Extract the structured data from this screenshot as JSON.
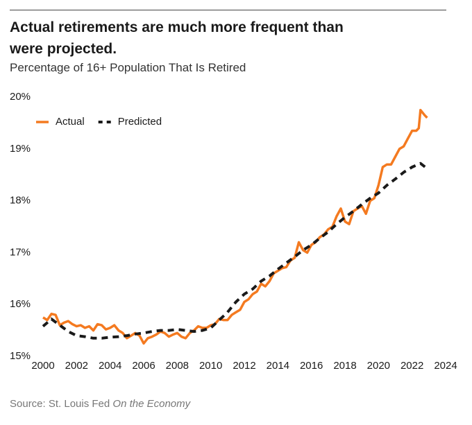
{
  "chart_data": {
    "type": "line",
    "title": "Actual retirements are much more frequent than were projected.",
    "subtitle": "Percentage of 16+ Population That Is Retired",
    "source": "Source: St. Louis Fed",
    "source_publication": "On the Economy",
    "legend": "upper left",
    "grid": false,
    "xlim": [
      2000,
      2024
    ],
    "xticks": [
      2000,
      2002,
      2004,
      2006,
      2008,
      2010,
      2012,
      2014,
      2016,
      2018,
      2020,
      2022,
      2024
    ],
    "ylim": [
      15,
      20
    ],
    "yticks": [
      {
        "value": 15,
        "label": "15%"
      },
      {
        "value": 16,
        "label": "16%"
      },
      {
        "value": 17,
        "label": "17%"
      },
      {
        "value": 18,
        "label": "18%"
      },
      {
        "value": 19,
        "label": "19%"
      },
      {
        "value": 20,
        "label": "20%"
      }
    ],
    "series": [
      {
        "name": "Actual",
        "color": "#f47a20",
        "dashed": false,
        "x": [
          2000,
          2000.25,
          2000.5,
          2000.75,
          2001,
          2001.25,
          2001.5,
          2001.75,
          2002,
          2002.25,
          2002.5,
          2002.75,
          2003,
          2003.25,
          2003.5,
          2003.75,
          2004,
          2004.25,
          2004.5,
          2004.75,
          2005,
          2005.25,
          2005.5,
          2005.75,
          2006,
          2006.25,
          2006.5,
          2006.75,
          2007,
          2007.25,
          2007.5,
          2007.75,
          2008,
          2008.25,
          2008.5,
          2008.75,
          2009,
          2009.25,
          2009.5,
          2009.75,
          2010,
          2010.25,
          2010.5,
          2010.75,
          2011,
          2011.25,
          2011.5,
          2011.75,
          2012,
          2012.25,
          2012.5,
          2012.75,
          2013,
          2013.25,
          2013.5,
          2013.75,
          2014,
          2014.25,
          2014.5,
          2014.75,
          2015,
          2015.25,
          2015.5,
          2015.75,
          2016,
          2016.25,
          2016.5,
          2016.75,
          2017,
          2017.25,
          2017.5,
          2017.75,
          2018,
          2018.25,
          2018.5,
          2018.75,
          2019,
          2019.25,
          2019.5,
          2019.75,
          2020,
          2020.25,
          2020.5,
          2020.75,
          2021,
          2021.25,
          2021.5,
          2021.75,
          2022,
          2022.25,
          2022.4,
          2022.5,
          2022.75,
          2022.9
        ],
        "values": [
          15.75,
          15.7,
          15.82,
          15.8,
          15.6,
          15.65,
          15.68,
          15.62,
          15.58,
          15.6,
          15.55,
          15.58,
          15.5,
          15.62,
          15.6,
          15.52,
          15.55,
          15.6,
          15.5,
          15.45,
          15.35,
          15.4,
          15.45,
          15.4,
          15.25,
          15.35,
          15.38,
          15.42,
          15.48,
          15.45,
          15.38,
          15.42,
          15.45,
          15.38,
          15.35,
          15.45,
          15.5,
          15.58,
          15.55,
          15.55,
          15.6,
          15.62,
          15.72,
          15.7,
          15.7,
          15.8,
          15.85,
          15.9,
          16.05,
          16.1,
          16.2,
          16.25,
          16.4,
          16.35,
          16.45,
          16.6,
          16.65,
          16.7,
          16.72,
          16.85,
          16.9,
          17.2,
          17.05,
          17.0,
          17.15,
          17.2,
          17.3,
          17.35,
          17.45,
          17.5,
          17.7,
          17.85,
          17.6,
          17.55,
          17.8,
          17.85,
          17.9,
          17.75,
          18.0,
          18.05,
          18.3,
          18.65,
          18.7,
          18.7,
          18.85,
          19.0,
          19.05,
          19.2,
          19.35,
          19.35,
          19.4,
          19.75,
          19.65,
          19.6
        ]
      },
      {
        "name": "Predicted",
        "color": "#1a1a1a",
        "dashed": true,
        "x": [
          2000,
          2000.5,
          2001,
          2001.5,
          2002,
          2002.5,
          2003,
          2003.5,
          2004,
          2004.5,
          2005,
          2005.5,
          2006,
          2006.5,
          2007,
          2007.5,
          2008,
          2008.5,
          2009,
          2009.5,
          2010,
          2010.5,
          2011,
          2011.5,
          2012,
          2012.5,
          2013,
          2013.5,
          2014,
          2014.5,
          2015,
          2015.5,
          2016,
          2016.5,
          2017,
          2017.5,
          2018,
          2018.5,
          2019,
          2019.5,
          2020,
          2020.5,
          2021,
          2021.5,
          2022,
          2022.5,
          2022.9
        ],
        "values": [
          15.58,
          15.72,
          15.6,
          15.48,
          15.4,
          15.38,
          15.35,
          15.35,
          15.37,
          15.38,
          15.4,
          15.43,
          15.45,
          15.48,
          15.5,
          15.5,
          15.52,
          15.5,
          15.48,
          15.5,
          15.55,
          15.7,
          15.85,
          16.05,
          16.2,
          16.3,
          16.45,
          16.55,
          16.68,
          16.8,
          16.92,
          17.05,
          17.15,
          17.28,
          17.4,
          17.55,
          17.68,
          17.8,
          17.93,
          18.05,
          18.15,
          18.3,
          18.42,
          18.55,
          18.65,
          18.72,
          18.62
        ]
      }
    ]
  }
}
